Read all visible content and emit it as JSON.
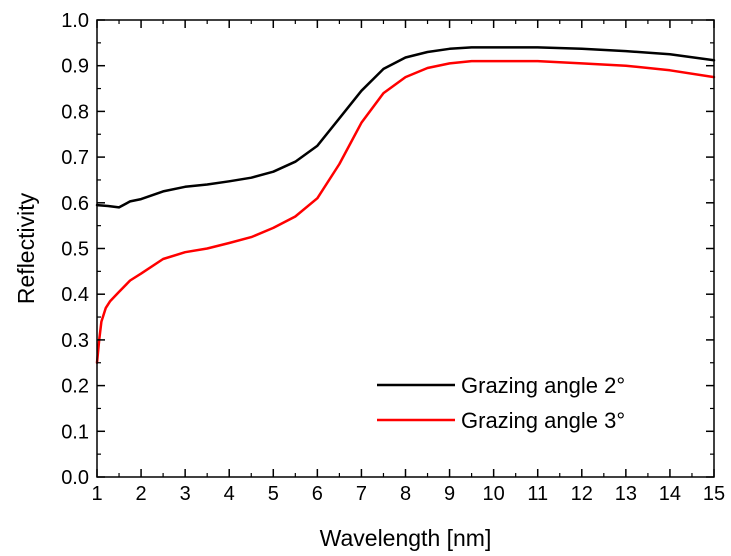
{
  "chart_data": {
    "type": "line",
    "xlabel": "Wavelength [nm]",
    "ylabel": "Reflectivity",
    "xlim": [
      1,
      15
    ],
    "ylim": [
      0.0,
      1.0
    ],
    "x_ticks": [
      1,
      2,
      3,
      4,
      5,
      6,
      7,
      8,
      9,
      10,
      11,
      12,
      13,
      14,
      15
    ],
    "y_ticks": [
      0.0,
      0.1,
      0.2,
      0.3,
      0.4,
      0.5,
      0.6,
      0.7,
      0.8,
      0.9,
      1.0
    ],
    "x_tick_labels": [
      "1",
      "2",
      "3",
      "4",
      "5",
      "6",
      "7",
      "8",
      "9",
      "10",
      "11",
      "12",
      "13",
      "14",
      "15"
    ],
    "y_tick_labels": [
      "0.0",
      "0.1",
      "0.2",
      "0.3",
      "0.4",
      "0.5",
      "0.6",
      "0.7",
      "0.8",
      "0.9",
      "1.0"
    ],
    "grid": false,
    "legend_position": "bottom-right",
    "series": [
      {
        "name": "Grazing angle 2°",
        "color": "#000000",
        "x": [
          1.0,
          1.25,
          1.5,
          1.75,
          2.0,
          2.5,
          3.0,
          3.5,
          4.0,
          4.5,
          5.0,
          5.5,
          6.0,
          6.5,
          7.0,
          7.5,
          8.0,
          8.5,
          9.0,
          9.5,
          10.0,
          11.0,
          12.0,
          13.0,
          14.0,
          15.0
        ],
        "y": [
          0.595,
          0.593,
          0.59,
          0.603,
          0.608,
          0.625,
          0.635,
          0.64,
          0.647,
          0.655,
          0.668,
          0.69,
          0.725,
          0.785,
          0.845,
          0.893,
          0.918,
          0.93,
          0.937,
          0.94,
          0.94,
          0.94,
          0.937,
          0.932,
          0.925,
          0.912
        ]
      },
      {
        "name": "Grazing angle 3°",
        "color": "#ff0000",
        "x": [
          1.0,
          1.05,
          1.1,
          1.2,
          1.3,
          1.5,
          1.75,
          2.0,
          2.5,
          3.0,
          3.5,
          4.0,
          4.5,
          5.0,
          5.5,
          6.0,
          6.5,
          7.0,
          7.5,
          8.0,
          8.5,
          9.0,
          9.5,
          10.0,
          11.0,
          12.0,
          13.0,
          14.0,
          15.0
        ],
        "y": [
          0.25,
          0.3,
          0.34,
          0.37,
          0.385,
          0.405,
          0.43,
          0.445,
          0.477,
          0.492,
          0.5,
          0.512,
          0.525,
          0.545,
          0.57,
          0.61,
          0.685,
          0.775,
          0.84,
          0.875,
          0.895,
          0.905,
          0.91,
          0.91,
          0.91,
          0.905,
          0.9,
          0.89,
          0.875
        ]
      }
    ]
  }
}
